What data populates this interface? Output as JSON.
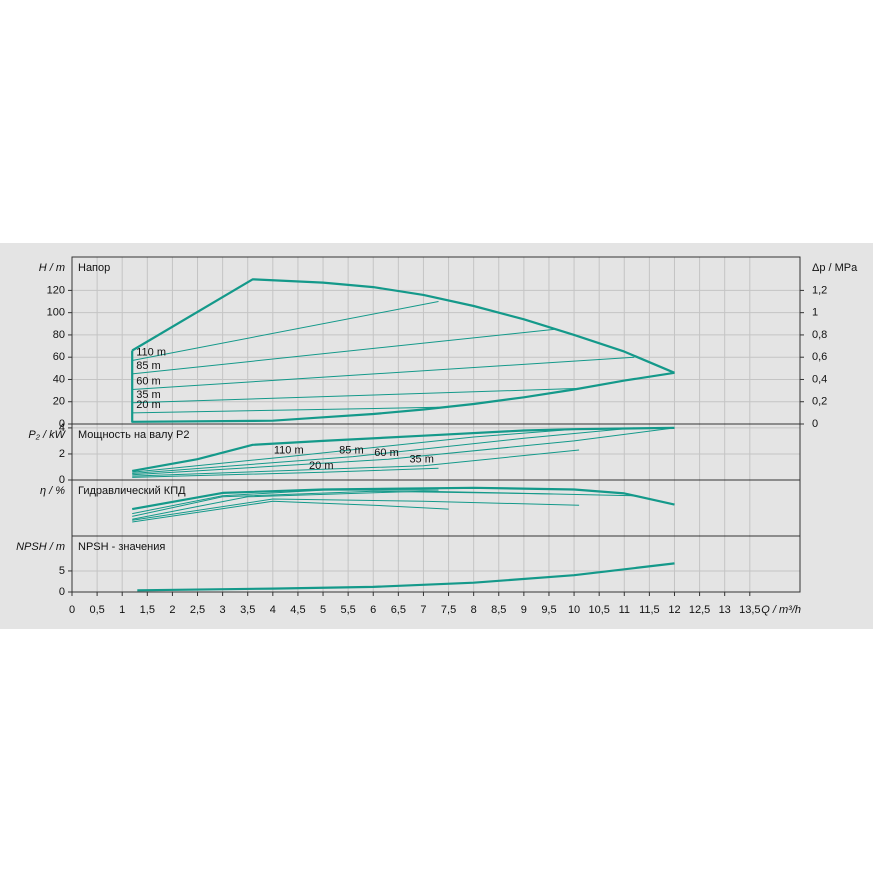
{
  "chart_data": [
    {
      "type": "line",
      "title": "Напор",
      "y_label": "H / m",
      "y2_label": "Δp / MPa",
      "xlim": [
        0,
        14.5
      ],
      "ylim": [
        0,
        150
      ],
      "yticks": [
        0,
        20,
        40,
        60,
        80,
        100,
        120
      ],
      "y2lim": [
        0,
        1.5
      ],
      "y2ticks": [
        0,
        {
          "value": 0.2,
          "label": "0,2"
        },
        {
          "value": 0.4,
          "label": "0,4"
        },
        {
          "value": 0.6,
          "label": "0,6"
        },
        {
          "value": 0.8,
          "label": "0,8"
        },
        1,
        {
          "value": 1.2,
          "label": "1,2"
        }
      ],
      "grid": true,
      "series": [
        {
          "color": "#14998a",
          "line_width": 2.2,
          "x": [
            1.2,
            3.6,
            5,
            6,
            7,
            8,
            9,
            10,
            11,
            12
          ],
          "values": [
            66,
            130,
            127,
            123,
            116,
            106,
            94,
            80,
            65,
            46
          ]
        },
        {
          "color": "#14998a",
          "line_width": 2.2,
          "x": [
            1.2,
            1.2,
            4,
            5,
            6,
            7,
            8,
            9,
            10,
            11,
            12
          ],
          "values": [
            66,
            2,
            3,
            6,
            9,
            13,
            18,
            24,
            31,
            39,
            46
          ]
        },
        {
          "name": "110 m",
          "color": "#14998a",
          "line_width": 1,
          "x": [
            1.2,
            7.3
          ],
          "values": [
            57,
            110
          ]
        },
        {
          "name": "85 m",
          "color": "#14998a",
          "line_width": 1,
          "x": [
            1.2,
            9.6
          ],
          "values": [
            45,
            85
          ]
        },
        {
          "name": "60 m",
          "color": "#14998a",
          "line_width": 1,
          "x": [
            1.2,
            11.2
          ],
          "values": [
            31,
            60
          ]
        },
        {
          "name": "35 m",
          "color": "#14998a",
          "line_width": 1,
          "x": [
            1.2,
            10.1
          ],
          "values": [
            19,
            32
          ]
        },
        {
          "name": "20 m",
          "color": "#14998a",
          "line_width": 1,
          "x": [
            1.2,
            7.3
          ],
          "values": [
            10,
            15
          ]
        }
      ]
    },
    {
      "type": "line",
      "title": "Мощность на валу P2",
      "y_label": "P₂ / kW",
      "xlim": [
        0,
        14.5
      ],
      "ylim": [
        0,
        4.3
      ],
      "yticks": [
        0,
        2,
        4
      ],
      "grid": true,
      "series": [
        {
          "color": "#14998a",
          "line_width": 2.2,
          "x": [
            1.2,
            2.5,
            3.6,
            5,
            7,
            9,
            10,
            12
          ],
          "values": [
            0.7,
            1.6,
            2.7,
            3.0,
            3.4,
            3.8,
            3.9,
            4.0
          ]
        },
        {
          "name": "110 m",
          "color": "#14998a",
          "line_width": 1,
          "x": [
            1.2,
            4.3,
            8,
            10
          ],
          "values": [
            0.6,
            1.8,
            3.3,
            3.9
          ]
        },
        {
          "name": "85 m",
          "color": "#14998a",
          "line_width": 1,
          "x": [
            1.2,
            5.6,
            9,
            11.2
          ],
          "values": [
            0.5,
            1.8,
            3.2,
            4.0
          ]
        },
        {
          "name": "60 m",
          "color": "#14998a",
          "line_width": 1,
          "x": [
            1.2,
            6.3,
            10,
            12
          ],
          "values": [
            0.4,
            1.6,
            3.0,
            4.0
          ]
        },
        {
          "name": "35 m",
          "color": "#14998a",
          "line_width": 1,
          "x": [
            1.2,
            7,
            10.1
          ],
          "values": [
            0.3,
            1.1,
            2.3
          ]
        },
        {
          "name": "20 m",
          "color": "#14998a",
          "line_width": 1,
          "x": [
            1.2,
            5,
            7.3
          ],
          "values": [
            0.2,
            0.6,
            0.9
          ]
        }
      ]
    },
    {
      "type": "line",
      "title": "Гидравлический КПД",
      "y_label": "η / %",
      "xlim": [
        0,
        14.5
      ],
      "ylim": [
        0,
        100
      ],
      "grid": true,
      "series": [
        {
          "color": "#14998a",
          "line_width": 2.2,
          "x": [
            1.2,
            3,
            5,
            8,
            10,
            11,
            12
          ],
          "values": [
            48,
            77,
            83,
            86,
            83,
            76,
            56
          ]
        },
        {
          "color": "#14998a",
          "line_width": 1,
          "x": [
            1.2,
            3,
            5,
            7.3
          ],
          "values": [
            40,
            72,
            82,
            82
          ]
        },
        {
          "color": "#14998a",
          "line_width": 1,
          "x": [
            1.2,
            3,
            6,
            9.6
          ],
          "values": [
            35,
            70,
            80,
            75
          ]
        },
        {
          "color": "#14998a",
          "line_width": 1,
          "x": [
            1.2,
            3.5,
            7,
            11.2
          ],
          "values": [
            30,
            70,
            80,
            72
          ]
        },
        {
          "color": "#14998a",
          "line_width": 1,
          "x": [
            1.2,
            4,
            7,
            10.1
          ],
          "values": [
            28,
            66,
            62,
            55
          ]
        },
        {
          "color": "#14998a",
          "line_width": 1,
          "x": [
            1.2,
            4,
            6,
            7.5
          ],
          "values": [
            25,
            62,
            55,
            48
          ]
        }
      ]
    },
    {
      "type": "line",
      "title": "NPSH - значения",
      "y_label": "NPSH / m",
      "x_label": "Q / m³/h",
      "xlim": [
        0,
        14.5
      ],
      "ylim": [
        0,
        13.3
      ],
      "yticks": [
        0,
        5
      ],
      "grid": true,
      "xticks": [
        0,
        {
          "value": 0.5,
          "label": "0,5"
        },
        1,
        {
          "value": 1.5,
          "label": "1,5"
        },
        2,
        {
          "value": 2.5,
          "label": "2,5"
        },
        3,
        {
          "value": 3.5,
          "label": "3,5"
        },
        4,
        {
          "value": 4.5,
          "label": "4,5"
        },
        5,
        {
          "value": 5.5,
          "label": "5,5"
        },
        6,
        {
          "value": 6.5,
          "label": "6,5"
        },
        7,
        {
          "value": 7.5,
          "label": "7,5"
        },
        8,
        {
          "value": 8.5,
          "label": "8,5"
        },
        9,
        {
          "value": 9.5,
          "label": "9,5"
        },
        10,
        {
          "value": 10.5,
          "label": "10,5"
        },
        11,
        {
          "value": 11.5,
          "label": "11,5"
        },
        12,
        {
          "value": 12.5,
          "label": "12,5"
        },
        13,
        {
          "value": 13.5,
          "label": "13,5"
        }
      ],
      "series": [
        {
          "color": "#14998a",
          "line_width": 2.2,
          "x": [
            1.3,
            4,
            6,
            8,
            10,
            12
          ],
          "values": [
            0.4,
            0.8,
            1.2,
            2.2,
            4.0,
            6.8
          ]
        }
      ]
    }
  ]
}
